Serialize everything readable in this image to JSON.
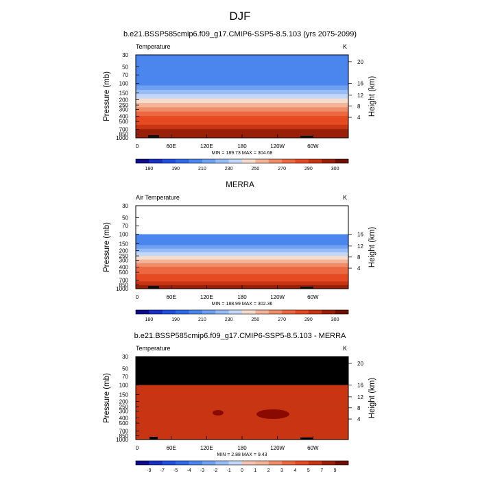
{
  "figure": {
    "title": "DJF"
  },
  "chart_data": [
    {
      "type": "heatmap",
      "title": "b.e21.BSSP585cmip6.f09_g17.CMIP6-SSP5-8.5.103 (yrs 2075-2099)",
      "left_label": "Temperature",
      "right_label": "K",
      "ylabel": "Pressure (mb)",
      "ylabel_right": "Height (km)",
      "x_ticks": [
        "0",
        "60E",
        "120E",
        "180",
        "120W",
        "60W"
      ],
      "y_ticks": [
        "30",
        "50",
        "70",
        "100",
        "150",
        "200",
        "250",
        "300",
        "400",
        "500",
        "700",
        "850",
        "1000"
      ],
      "height_ticks": [
        "20",
        "16",
        "12",
        "8",
        "4"
      ],
      "stats": "MIN = 189.73  MAX = 304.68",
      "colorbar_labels": [
        "180",
        "190",
        "210",
        "230",
        "250",
        "270",
        "290",
        "300"
      ],
      "data_top_pressure": 30,
      "level_values": [
        205,
        203,
        201,
        200,
        201,
        203,
        208,
        214,
        222,
        232,
        243,
        255,
        265,
        273,
        280,
        287,
        292,
        296,
        298
      ]
    },
    {
      "type": "heatmap",
      "title": "MERRA",
      "left_label": "Air Temperature",
      "right_label": "K",
      "ylabel": "Pressure (mb)",
      "ylabel_right": "Height (km)",
      "x_ticks": [
        "0",
        "60E",
        "120E",
        "180",
        "120W",
        "60W"
      ],
      "y_ticks": [
        "30",
        "50",
        "70",
        "100",
        "150",
        "200",
        "250",
        "300",
        "400",
        "500",
        "700",
        "850",
        "1000"
      ],
      "height_ticks": [
        "16",
        "12",
        "8",
        "4"
      ],
      "stats": "MIN = 188.99  MAX = 302.36",
      "colorbar_labels": [
        "180",
        "190",
        "210",
        "230",
        "250",
        "270",
        "290",
        "300"
      ],
      "data_top_pressure": 100,
      "level_values": [
        200,
        203,
        208,
        214,
        222,
        231,
        241,
        252,
        262,
        270,
        277,
        284,
        289,
        293,
        296
      ]
    },
    {
      "type": "heatmap",
      "title": "b.e21.BSSP585cmip6.f09_g17.CMIP6-SSP5-8.5.103 - MERRA",
      "left_label": "Temperature",
      "right_label": "K",
      "ylabel": "Pressure (mb)",
      "ylabel_right": "Height (km)",
      "x_ticks": [
        "0",
        "60E",
        "120E",
        "180",
        "120W",
        "60W"
      ],
      "y_ticks": [
        "30",
        "50",
        "70",
        "100",
        "150",
        "200",
        "250",
        "300",
        "400",
        "500",
        "700",
        "850",
        "1000"
      ],
      "height_ticks": [
        "20",
        "16",
        "12",
        "8",
        "4"
      ],
      "stats": "MIN =   2.88  MAX =   9.43",
      "colorbar_labels": [
        "-9",
        "-7",
        "-5",
        "-4",
        "-3",
        "-2",
        "-1",
        "0",
        "1",
        "2",
        "3",
        "4",
        "5",
        "7",
        "9"
      ],
      "data_top_pressure": 100,
      "missing_region_color": "#000000",
      "level_values": [
        5.5,
        6.5,
        6.6,
        6.7,
        6.7,
        6.6,
        6.4,
        5.8,
        5.6,
        5.5,
        5.6,
        5.8
      ]
    }
  ],
  "colors": {
    "temperature_scale": [
      "#0d0d8a",
      "#1a2fc4",
      "#2150e0",
      "#2f6be8",
      "#4a86ee",
      "#6fa0f2",
      "#98bdf6",
      "#c3d8f9",
      "#f6dccc",
      "#f3b49a",
      "#ef8d68",
      "#eb6840",
      "#e54a22",
      "#c83512",
      "#9a1f08",
      "#6e0f02"
    ],
    "difference_scale": [
      "#0d0d8a",
      "#1a2fc4",
      "#2150e0",
      "#2f6be8",
      "#4a86ee",
      "#6fa0f2",
      "#98bdf6",
      "#c3d8f9",
      "#f3c4b0",
      "#f3b49a",
      "#ef8d68",
      "#eb6840",
      "#e54a22",
      "#c83512",
      "#9a1f08",
      "#6e0f02"
    ]
  }
}
